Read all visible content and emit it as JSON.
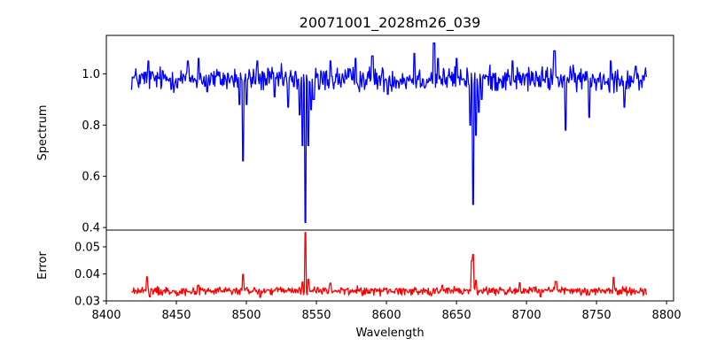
{
  "chart_data": {
    "type": "line",
    "title": "20071001_2028m26_039",
    "xlabel": "Wavelength",
    "xlim": [
      8400,
      8805
    ],
    "xticks": [
      8400,
      8450,
      8500,
      8550,
      8600,
      8650,
      8700,
      8750,
      8800
    ],
    "panels": [
      {
        "ylabel": "Spectrum",
        "ylim": [
          0.39,
          1.15
        ],
        "yticks": [
          0.4,
          0.6,
          0.8,
          1.0
        ],
        "ytick_labels": [
          "0.4",
          "0.6",
          "0.8",
          "1.0"
        ],
        "series": [
          {
            "color": "#0000ff",
            "x_range": [
              8418,
              8786
            ],
            "n_points": 720,
            "continuum": 0.98,
            "noise_amplitude": 0.035,
            "points": [
              [
                8430,
                1.05
              ],
              [
                8458,
                1.05
              ],
              [
                8466,
                1.06
              ],
              [
                8472,
                0.93
              ],
              [
                8495,
                0.88
              ],
              [
                8497.5,
                0.66
              ],
              [
                8500,
                0.88
              ],
              [
                8508,
                1.05
              ],
              [
                8520,
                0.91
              ],
              [
                8530,
                0.87
              ],
              [
                8534,
                0.95
              ],
              [
                8538,
                0.84
              ],
              [
                8540,
                0.72
              ],
              [
                8542,
                0.42
              ],
              [
                8544,
                0.72
              ],
              [
                8546,
                0.86
              ],
              [
                8548,
                0.9
              ],
              [
                8552,
                0.94
              ],
              [
                8560,
                1.05
              ],
              [
                8578,
                1.06
              ],
              [
                8590,
                1.07
              ],
              [
                8601,
                0.92
              ],
              [
                8620,
                1.08
              ],
              [
                8634,
                1.12
              ],
              [
                8637,
                1.06
              ],
              [
                8650,
                1.06
              ],
              [
                8655,
                0.98
              ],
              [
                8660,
                0.8
              ],
              [
                8662,
                0.49
              ],
              [
                8664,
                0.76
              ],
              [
                8666,
                0.85
              ],
              [
                8668,
                0.9
              ],
              [
                8672,
                0.99
              ],
              [
                8690,
                1.05
              ],
              [
                8710,
                0.95
              ],
              [
                8720,
                1.09
              ],
              [
                8728,
                0.78
              ],
              [
                8745,
                0.83
              ],
              [
                8760,
                1.05
              ],
              [
                8770,
                0.87
              ],
              [
                8778,
                1.03
              ],
              [
                8786,
                0.99
              ]
            ]
          }
        ]
      },
      {
        "ylabel": "Error",
        "ylim": [
          0.03,
          0.0562
        ],
        "yticks": [
          0.03,
          0.04,
          0.05
        ],
        "ytick_labels": [
          "0.03",
          "0.04",
          "0.05"
        ],
        "series": [
          {
            "color": "#ff0000",
            "x_range": [
              8418,
              8786
            ],
            "n_points": 720,
            "continuum": 0.0337,
            "noise_amplitude": 0.0012,
            "points": [
              [
                8418,
                0.0332
              ],
              [
                8429,
                0.0389
              ],
              [
                8431,
                0.0315
              ],
              [
                8466,
                0.0358
              ],
              [
                8497.5,
                0.0398
              ],
              [
                8510,
                0.0313
              ],
              [
                8540,
                0.037
              ],
              [
                8542,
                0.0553
              ],
              [
                8544,
                0.038
              ],
              [
                8560,
                0.0366
              ],
              [
                8600,
                0.0347
              ],
              [
                8640,
                0.0358
              ],
              [
                8661,
                0.0448
              ],
              [
                8662,
                0.0472
              ],
              [
                8664,
                0.0376
              ],
              [
                8695,
                0.0367
              ],
              [
                8710,
                0.0315
              ],
              [
                8721,
                0.0372
              ],
              [
                8762,
                0.0387
              ],
              [
                8786,
                0.0325
              ]
            ]
          }
        ]
      }
    ]
  }
}
